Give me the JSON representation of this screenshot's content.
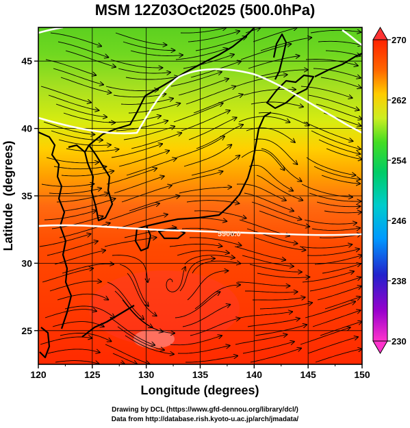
{
  "title": "MSM 12Z03Oct2025 (500.0hPa)",
  "credit": {
    "line1": "Drawing by DCL (https://www.gfd-dennou.org/library/dcl/)",
    "line2": "Data from http://database.rish.kyoto-u.ac.jp/arch/jmadata/"
  },
  "map": {
    "xlabel": "Longitude (degrees)",
    "ylabel": "Latitude  (degrees)",
    "lon_range": [
      120,
      150
    ],
    "lat_range": [
      22.5,
      47.5
    ],
    "lon_ticks": [
      "120",
      "125",
      "130",
      "135",
      "140",
      "145",
      "150"
    ],
    "lat_ticks": [
      "25",
      "30",
      "35",
      "40",
      "45"
    ],
    "contour_label": "5900.0",
    "field": "temperature",
    "overlays": [
      "streamlines",
      "geopotential-height-contours",
      "coastlines",
      "gridlines"
    ]
  },
  "colorbar": {
    "range": [
      230,
      270
    ],
    "tick_labels": [
      "270",
      "262",
      "254",
      "246",
      "238",
      "230"
    ],
    "colors": [
      "#ff33cc",
      "#9900cc",
      "#2222cc",
      "#0099ff",
      "#00cccc",
      "#00cc66",
      "#44dd22",
      "#ccee22",
      "#ffcc00",
      "#ff6600",
      "#ff2200"
    ]
  }
}
